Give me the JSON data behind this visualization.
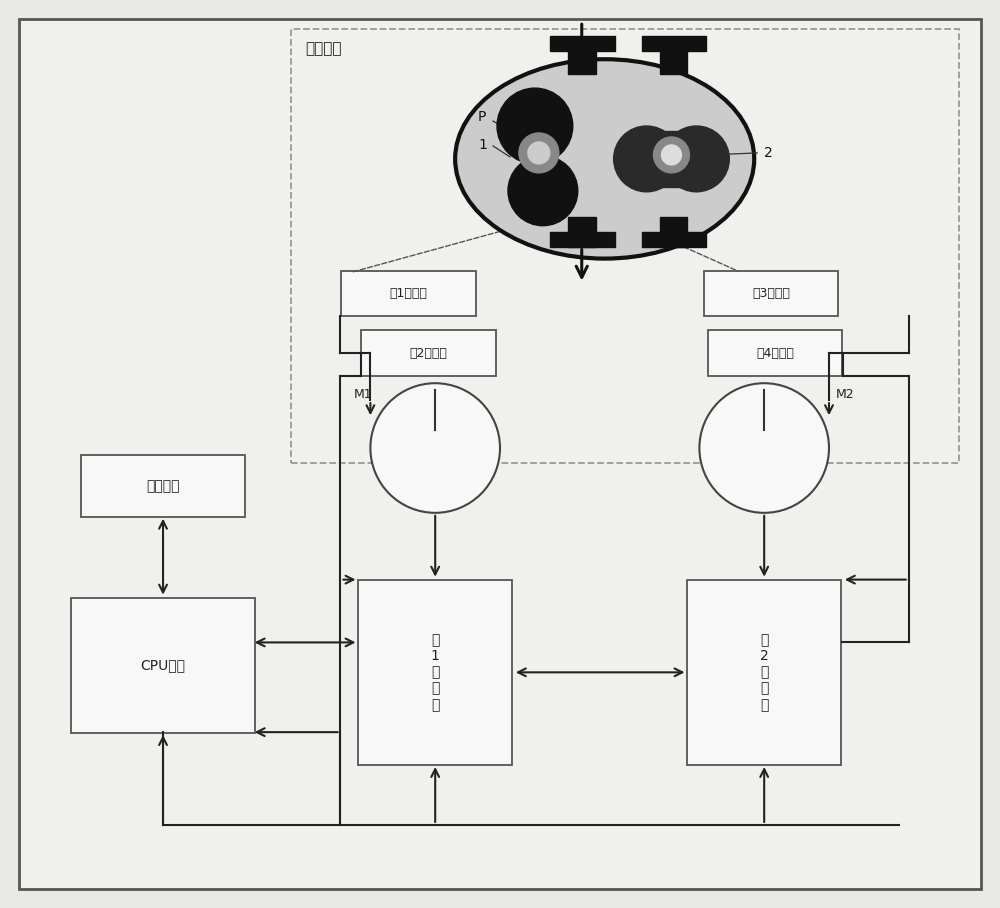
{
  "bg_color": "#e8e8e4",
  "outer_bg": "#f0f0ec",
  "mech_label": "机械部分",
  "encoder1_label": "第1编码器",
  "encoder2_label": "第2编码器",
  "encoder3_label": "第3编码器",
  "encoder4_label": "第4编码器",
  "inverter1_label": "第\n1\n变\n频\n器",
  "inverter2_label": "第\n2\n变\n频\n器",
  "motor1_label": "M1",
  "motor2_label": "M2",
  "hmi_label": "人机界面",
  "cpu_label": "CPU单元",
  "spindle1_label": "1",
  "spindle2_label": "2",
  "pressure_label": "P"
}
